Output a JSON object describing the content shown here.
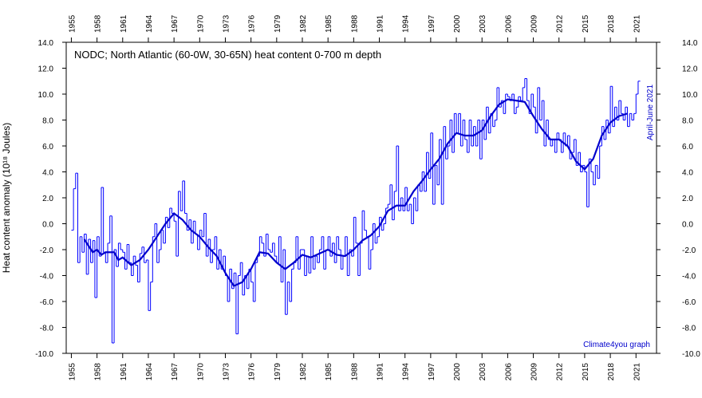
{
  "chart_data": {
    "type": "step-line",
    "title": "NODC; North Atlantic (60-0W, 30-65N) heat content 0-700 m depth",
    "y_label": "Heat content anomaly (10¹⁸ Joules)",
    "annotations": [
      "April-June 2021",
      "Climate4you graph"
    ],
    "xlim": [
      1954.4,
      2023.4
    ],
    "ylim": [
      -10,
      14
    ],
    "xticks": [
      1955,
      1958,
      1961,
      1964,
      1967,
      1970,
      1973,
      1976,
      1979,
      1982,
      1985,
      1988,
      1991,
      1994,
      1997,
      2000,
      2003,
      2006,
      2009,
      2012,
      2015,
      2018,
      2021
    ],
    "yticks": [
      {
        "value": -10,
        "label": "-10.0"
      },
      {
        "value": -8,
        "label": "-8.0"
      },
      {
        "value": -6,
        "label": "-6.0"
      },
      {
        "value": -4,
        "label": "-4.0"
      },
      {
        "value": -2,
        "label": "-2.0"
      },
      {
        "value": 0,
        "label": "0.0"
      },
      {
        "value": 2,
        "label": "2.0"
      },
      {
        "value": 4,
        "label": "4.0"
      },
      {
        "value": 6,
        "label": "6.0"
      },
      {
        "value": 8,
        "label": "8.0"
      },
      {
        "value": 10,
        "label": "10.0"
      },
      {
        "value": 12,
        "label": "12.0"
      },
      {
        "value": 14,
        "label": "14.0"
      }
    ],
    "series": [
      {
        "color": "#0000ff",
        "step": true,
        "values": [
          -0.5,
          2.7,
          3.9,
          -3.0,
          -1.0,
          -2.2,
          -0.8,
          -3.9,
          -1.2,
          -3.0,
          -1.3,
          -5.7,
          -1.0,
          -2.5,
          2.8,
          -2.2,
          -3.0,
          -1.5,
          0.6,
          -9.2,
          -2.0,
          -3.3,
          -1.5,
          -2.0,
          -2.2,
          -3.5,
          -1.6,
          -3.0,
          -4.0,
          -2.5,
          -3.2,
          -4.5,
          -2.3,
          -1.8,
          -3.0,
          -2.8,
          -6.7,
          -4.5,
          -1.0,
          0.0,
          -3.0,
          -2.0,
          -0.5,
          -1.5,
          0.5,
          -0.3,
          1.2,
          0.8,
          0.2,
          -2.5,
          2.5,
          1.0,
          3.3,
          0.8,
          -0.5,
          0.3,
          -1.5,
          0.2,
          -0.8,
          -2.0,
          -0.5,
          -1.0,
          0.8,
          -2.5,
          -1.2,
          -3.0,
          -2.0,
          -1.0,
          -3.5,
          -2.0,
          -3.5,
          -2.5,
          -4.0,
          -6.0,
          -3.5,
          -5.0,
          -3.8,
          -8.5,
          -4.0,
          -3.0,
          -5.5,
          -4.0,
          -5.0,
          -3.5,
          -4.5,
          -6.0,
          -3.0,
          -2.5,
          -1.0,
          -1.5,
          -2.5,
          -0.8,
          -2.0,
          -2.2,
          -1.5,
          -2.5,
          -3.0,
          -1.0,
          -4.5,
          -2.0,
          -7.0,
          -4.5,
          -6.0,
          -3.5,
          -3.0,
          -1.0,
          -3.5,
          -2.0,
          -2.0,
          -4.0,
          -2.5,
          -3.8,
          -1.0,
          -3.5,
          -2.5,
          -3.0,
          -2.0,
          -1.0,
          -3.5,
          -2.0,
          -1.0,
          -2.5,
          -1.5,
          -3.0,
          -1.0,
          -2.0,
          -3.5,
          -2.5,
          -1.0,
          -4.0,
          -2.0,
          -2.5,
          0.5,
          -1.5,
          -4.0,
          -1.5,
          1.0,
          -0.5,
          -1.0,
          -3.5,
          -2.0,
          0.0,
          -1.5,
          -1.0,
          0.5,
          -0.5,
          0.0,
          1.2,
          1.5,
          3.0,
          0.3,
          2.5,
          6.0,
          1.0,
          2.0,
          1.0,
          2.8,
          1.0,
          1.5,
          0.0,
          2.0,
          1.0,
          3.0,
          2.5,
          4.0,
          2.5,
          5.5,
          3.5,
          7.0,
          1.5,
          4.5,
          3.0,
          6.5,
          1.5,
          7.5,
          5.0,
          6.0,
          8.0,
          5.5,
          8.5,
          7.0,
          8.5,
          6.0,
          8.0,
          6.5,
          5.5,
          8.0,
          6.0,
          7.5,
          6.0,
          8.0,
          5.0,
          8.0,
          6.5,
          9.0,
          7.0,
          8.5,
          7.5,
          8.0,
          10.5,
          9.0,
          9.5,
          8.5,
          10.0,
          9.8,
          9.5,
          10.0,
          8.5,
          9.0,
          9.8,
          9.5,
          10.5,
          11.2,
          9.5,
          8.5,
          10.0,
          9.0,
          7.0,
          10.5,
          8.0,
          9.5,
          6.0,
          8.0,
          6.5,
          6.0,
          6.5,
          5.5,
          7.0,
          6.5,
          5.5,
          7.0,
          6.0,
          6.8,
          5.0,
          5.5,
          6.5,
          4.5,
          5.5,
          4.0,
          4.5,
          4.0,
          1.3,
          5.0,
          4.0,
          3.0,
          4.5,
          3.5,
          6.0,
          7.5,
          6.5,
          8.0,
          7.0,
          10.6,
          7.5,
          9.0,
          8.0,
          9.5,
          8.5,
          8.0,
          9.0,
          7.5,
          8.5,
          8.0,
          8.5,
          10.0,
          11.0
        ]
      },
      {
        "color": "#0000cc",
        "step": false,
        "x": [
          1956.5,
          1957,
          1957.5,
          1958,
          1958.5,
          1959,
          1960,
          1960.5,
          1961,
          1962,
          1963,
          1964,
          1965,
          1966,
          1967,
          1968,
          1969,
          1970,
          1971,
          1972,
          1973,
          1974,
          1975,
          1976,
          1977,
          1978,
          1979,
          1980,
          1981,
          1982,
          1983,
          1984,
          1985,
          1986,
          1987,
          1988,
          1989,
          1990,
          1991,
          1992,
          1993,
          1994,
          1995,
          1996,
          1997,
          1998,
          1999,
          2000,
          2001,
          2002,
          2003,
          2004,
          2005,
          2006,
          2007,
          2008,
          2009,
          2010,
          2011,
          2012,
          2013,
          2014,
          2015,
          2016,
          2017,
          2018,
          2019,
          2020
        ],
        "values": [
          -1.2,
          -1.7,
          -2.2,
          -2.0,
          -2.4,
          -2.2,
          -2.2,
          -2.8,
          -2.6,
          -3.2,
          -2.8,
          -2.0,
          -1.0,
          0.0,
          0.8,
          0.3,
          -0.5,
          -1.0,
          -1.8,
          -2.5,
          -3.8,
          -4.8,
          -4.5,
          -3.5,
          -2.2,
          -2.3,
          -3.0,
          -3.5,
          -3.0,
          -2.4,
          -2.6,
          -2.3,
          -2.0,
          -2.4,
          -2.5,
          -2.0,
          -1.3,
          -0.9,
          -0.2,
          1.0,
          1.4,
          1.4,
          2.5,
          3.3,
          4.2,
          5.0,
          6.2,
          7.0,
          6.8,
          6.8,
          7.2,
          8.3,
          9.2,
          9.6,
          9.5,
          9.4,
          8.3,
          7.3,
          6.5,
          6.5,
          6.0,
          4.8,
          4.2,
          5.0,
          6.8,
          7.8,
          8.3,
          8.5
        ]
      }
    ]
  }
}
